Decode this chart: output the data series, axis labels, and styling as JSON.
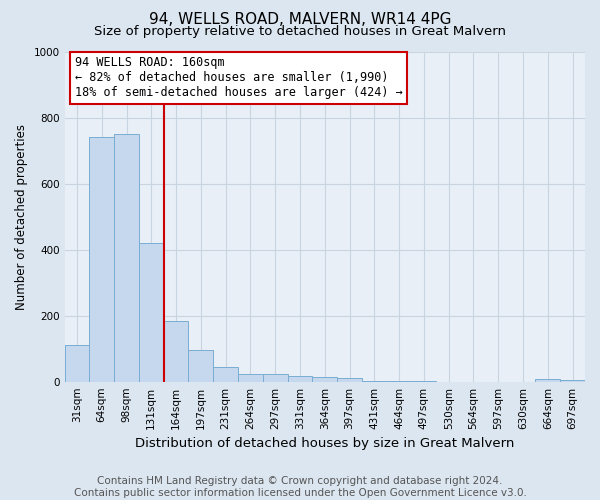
{
  "title": "94, WELLS ROAD, MALVERN, WR14 4PG",
  "subtitle": "Size of property relative to detached houses in Great Malvern",
  "xlabel": "Distribution of detached houses by size in Great Malvern",
  "ylabel": "Number of detached properties",
  "footer_line1": "Contains HM Land Registry data © Crown copyright and database right 2024.",
  "footer_line2": "Contains public sector information licensed under the Open Government Licence v3.0.",
  "bin_labels": [
    "31sqm",
    "64sqm",
    "98sqm",
    "131sqm",
    "164sqm",
    "197sqm",
    "231sqm",
    "264sqm",
    "297sqm",
    "331sqm",
    "364sqm",
    "397sqm",
    "431sqm",
    "464sqm",
    "497sqm",
    "530sqm",
    "564sqm",
    "597sqm",
    "630sqm",
    "664sqm",
    "697sqm"
  ],
  "bar_values": [
    110,
    740,
    750,
    420,
    185,
    97,
    44,
    22,
    22,
    18,
    15,
    12,
    2,
    2,
    2,
    0,
    0,
    0,
    0,
    7,
    5
  ],
  "bar_color": "#c5d8ee",
  "bar_edge_color": "#7aadd4",
  "annotation_text_line1": "94 WELLS ROAD: 160sqm",
  "annotation_text_line2": "← 82% of detached houses are smaller (1,990)",
  "annotation_text_line3": "18% of semi-detached houses are larger (424) →",
  "vline_color": "#cc0000",
  "annotation_box_color": "#ffffff",
  "annotation_box_edge_color": "#cc0000",
  "ylim": [
    0,
    1000
  ],
  "bg_color": "#dce6f0",
  "plot_bg_color": "#e8eff7",
  "grid_color": "#c8d4e0",
  "title_fontsize": 11,
  "subtitle_fontsize": 9.5,
  "xlabel_fontsize": 9.5,
  "ylabel_fontsize": 8.5,
  "tick_fontsize": 7.5,
  "annotation_fontsize": 8.5,
  "footer_fontsize": 7.5,
  "vline_bin_index": 4
}
